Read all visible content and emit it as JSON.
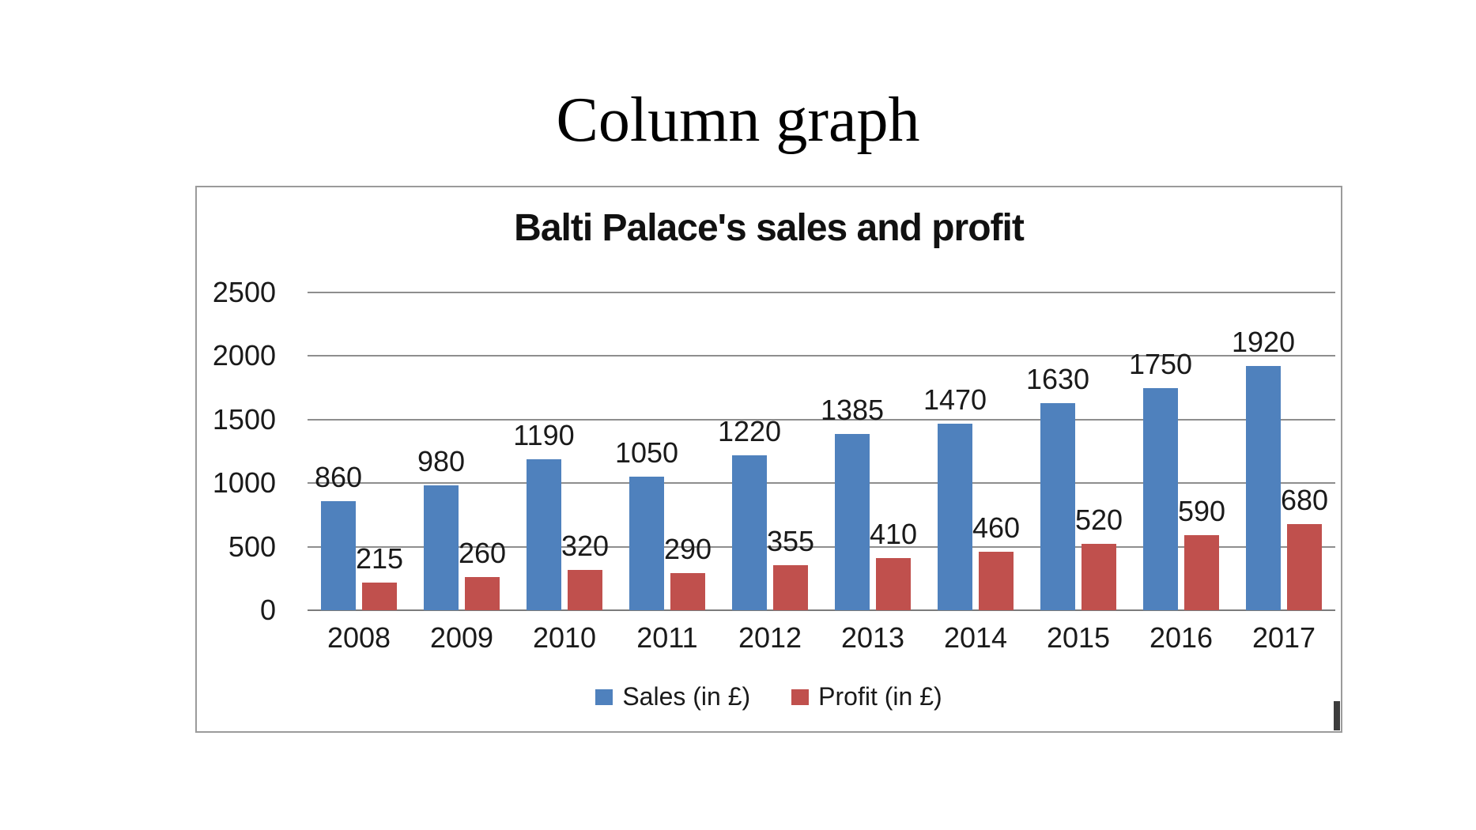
{
  "page": {
    "title": "Column graph"
  },
  "chart": {
    "title": "Balti Palace's sales and profit",
    "colors": {
      "sales": "#4F81BD",
      "profit": "#C0504D",
      "gridline": "#8e8e8e",
      "frame_border": "#9b9b9b",
      "text": "#1a1a1a"
    }
  },
  "chart_data": {
    "type": "bar",
    "title": "Balti Palace's sales and profit",
    "categories": [
      "2008",
      "2009",
      "2010",
      "2011",
      "2012",
      "2013",
      "2014",
      "2015",
      "2016",
      "2017"
    ],
    "series": [
      {
        "name": "Sales (in £)",
        "color": "#4F81BD",
        "values": [
          860,
          980,
          1190,
          1050,
          1220,
          1385,
          1470,
          1630,
          1750,
          1920
        ]
      },
      {
        "name": "Profit (in £)",
        "color": "#C0504D",
        "values": [
          215,
          260,
          320,
          290,
          355,
          410,
          460,
          520,
          590,
          680
        ]
      }
    ],
    "xlabel": "",
    "ylabel": "",
    "ylim": [
      0,
      2500
    ],
    "yticks": [
      0,
      500,
      1000,
      1500,
      2000,
      2500
    ],
    "grid": true,
    "legend_position": "bottom",
    "data_labels": true
  }
}
